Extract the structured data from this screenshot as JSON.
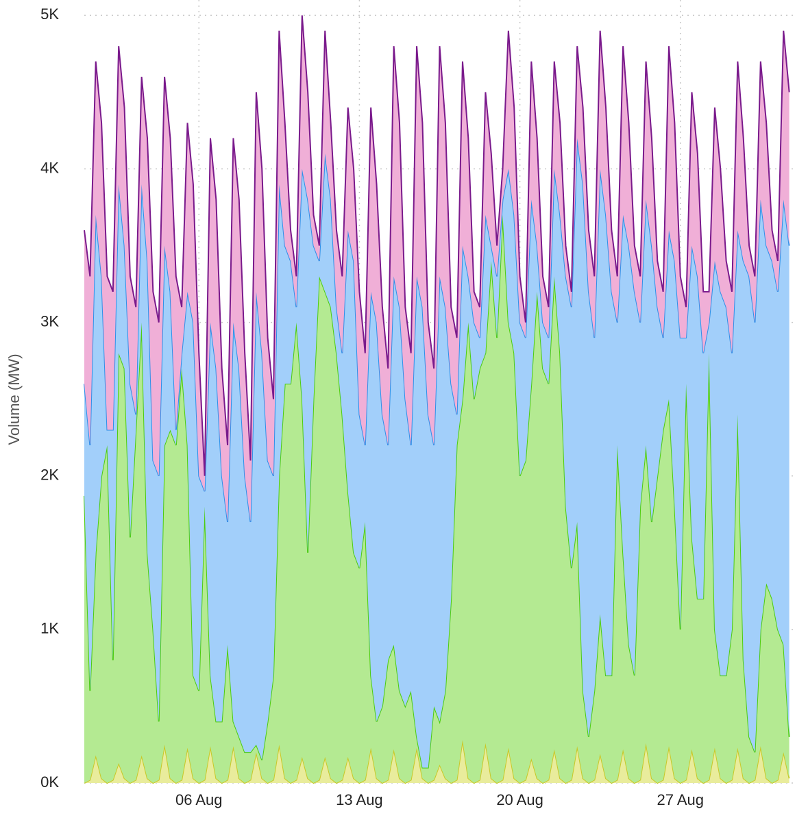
{
  "chart_data": {
    "type": "stacked-area",
    "y_label": "Volume (MW)",
    "xlim": [
      1,
      32
    ],
    "xticks": [
      {
        "value": 6,
        "label": "06 Aug"
      },
      {
        "value": 13,
        "label": "13 Aug"
      },
      {
        "value": 20,
        "label": "20 Aug"
      },
      {
        "value": 27,
        "label": "27 Aug"
      }
    ],
    "ylim": [
      0,
      5100
    ],
    "yticks": [
      {
        "value": 0,
        "label": "0K"
      },
      {
        "value": 1000,
        "label": "1K"
      },
      {
        "value": 2000,
        "label": "2K"
      },
      {
        "value": 3000,
        "label": "3K"
      },
      {
        "value": 4000,
        "label": "4K"
      },
      {
        "value": 5000,
        "label": "5K"
      }
    ],
    "grid": true,
    "x": [
      1,
      1.25,
      1.5,
      1.75,
      2,
      2.25,
      2.5,
      2.75,
      3,
      3.25,
      3.5,
      3.75,
      4,
      4.25,
      4.5,
      4.75,
      5,
      5.25,
      5.5,
      5.75,
      6,
      6.25,
      6.5,
      6.75,
      7,
      7.25,
      7.5,
      7.75,
      8,
      8.25,
      8.5,
      8.75,
      9,
      9.25,
      9.5,
      9.75,
      10,
      10.25,
      10.5,
      10.75,
      11,
      11.25,
      11.5,
      11.75,
      12,
      12.25,
      12.5,
      12.75,
      13,
      13.25,
      13.5,
      13.75,
      14,
      14.25,
      14.5,
      14.75,
      15,
      15.25,
      15.5,
      15.75,
      16,
      16.25,
      16.5,
      16.75,
      17,
      17.25,
      17.5,
      17.75,
      18,
      18.25,
      18.5,
      18.75,
      19,
      19.25,
      19.5,
      19.75,
      20,
      20.25,
      20.5,
      20.75,
      21,
      21.25,
      21.5,
      21.75,
      22,
      22.25,
      22.5,
      22.75,
      23,
      23.25,
      23.5,
      23.75,
      24,
      24.25,
      24.5,
      24.75,
      25,
      25.25,
      25.5,
      25.75,
      26,
      26.25,
      26.5,
      26.75,
      27,
      27.25,
      27.5,
      27.75,
      28,
      28.25,
      28.5,
      28.75,
      29,
      29.25,
      29.5,
      29.75,
      30,
      30.25,
      30.5,
      30.75,
      31,
      31.25,
      31.5,
      31.75
    ],
    "series": [
      {
        "color": "#c8c828",
        "fill": "#e9ec9c",
        "values": [
          0,
          20,
          180,
          30,
          0,
          20,
          130,
          30,
          0,
          20,
          180,
          30,
          0,
          20,
          250,
          30,
          0,
          20,
          230,
          30,
          0,
          20,
          240,
          30,
          0,
          20,
          240,
          30,
          0,
          20,
          200,
          30,
          0,
          20,
          250,
          30,
          0,
          20,
          170,
          30,
          0,
          20,
          170,
          30,
          0,
          20,
          170,
          30,
          0,
          20,
          230,
          30,
          0,
          20,
          220,
          30,
          0,
          20,
          230,
          30,
          0,
          20,
          120,
          30,
          0,
          20,
          280,
          30,
          0,
          20,
          260,
          30,
          0,
          20,
          230,
          30,
          0,
          20,
          160,
          30,
          0,
          20,
          220,
          30,
          0,
          20,
          240,
          30,
          0,
          20,
          190,
          30,
          0,
          20,
          220,
          30,
          0,
          20,
          260,
          30,
          0,
          20,
          240,
          30,
          0,
          20,
          220,
          30,
          0,
          20,
          230,
          30,
          0,
          20,
          230,
          30,
          0,
          20,
          240,
          30,
          0,
          20,
          200,
          30
        ]
      },
      {
        "color": "#4ccc10",
        "fill": "#b4ea92",
        "values": [
          1870,
          580,
          1320,
          1970,
          2200,
          780,
          2670,
          2670,
          1600,
          2280,
          2820,
          1470,
          1000,
          380,
          1950,
          2270,
          2200,
          2680,
          1970,
          670,
          600,
          1780,
          460,
          370,
          400,
          880,
          160,
          270,
          200,
          180,
          50,
          120,
          400,
          680,
          1750,
          2570,
          2600,
          2980,
          2330,
          1470,
          2500,
          3280,
          3030,
          3070,
          2800,
          2380,
          1730,
          1470,
          1400,
          1680,
          470,
          370,
          500,
          780,
          680,
          570,
          500,
          580,
          70,
          70,
          100,
          480,
          280,
          570,
          1200,
          2180,
          2220,
          2970,
          2500,
          2680,
          2540,
          3370,
          2900,
          3680,
          2770,
          2770,
          2000,
          2080,
          2440,
          3170,
          2700,
          2580,
          3080,
          2770,
          1800,
          1380,
          1460,
          570,
          300,
          580,
          910,
          670,
          700,
          2180,
          1280,
          870,
          700,
          1780,
          1940,
          1670,
          2000,
          2280,
          2260,
          1770,
          1000,
          2580,
          1380,
          1170,
          1200,
          2780,
          770,
          670,
          700,
          980,
          2170,
          770,
          300,
          180,
          760,
          1270,
          1200,
          980,
          700,
          270
        ]
      },
      {
        "color": "#2e8fe8",
        "fill": "#a2cffa",
        "values": [
          730,
          1600,
          2200,
          1300,
          100,
          1500,
          1100,
          800,
          1000,
          100,
          900,
          1900,
          1100,
          1600,
          1300,
          900,
          100,
          100,
          1000,
          2300,
          1400,
          100,
          2300,
          2300,
          1600,
          800,
          2600,
          2400,
          1800,
          1500,
          2950,
          2650,
          1700,
          1300,
          1900,
          900,
          800,
          100,
          1500,
          2300,
          1000,
          100,
          900,
          700,
          300,
          400,
          1700,
          1900,
          1000,
          500,
          2500,
          2600,
          1900,
          1400,
          2400,
          2500,
          2000,
          1600,
          3000,
          3000,
          2300,
          1700,
          2900,
          2500,
          1400,
          200,
          1000,
          300,
          500,
          200,
          900,
          100,
          400,
          100,
          1000,
          900,
          1000,
          800,
          1200,
          300,
          300,
          300,
          700,
          900,
          1500,
          1700,
          2500,
          3300,
          2900,
          2300,
          2900,
          3000,
          2500,
          800,
          2200,
          2600,
          2500,
          1200,
          1600,
          1800,
          1100,
          600,
          1100,
          1600,
          1900,
          300,
          1900,
          2100,
          1600,
          200,
          2400,
          2500,
          2400,
          1800,
          1200,
          2600,
          3000,
          2800,
          2800,
          2200,
          2200,
          2200,
          2900,
          3200
        ]
      },
      {
        "color": "#7a1a8c",
        "fill": "#f0afd7",
        "values": [
          1000,
          1100,
          1000,
          1000,
          1000,
          900,
          900,
          900,
          700,
          700,
          700,
          800,
          1100,
          1000,
          1100,
          1000,
          1000,
          300,
          1100,
          900,
          800,
          100,
          1200,
          1100,
          700,
          500,
          1200,
          1100,
          800,
          400,
          1300,
          1200,
          800,
          500,
          1000,
          800,
          200,
          200,
          1000,
          700,
          200,
          100,
          800,
          500,
          500,
          500,
          800,
          600,
          800,
          600,
          1200,
          900,
          700,
          500,
          1500,
          1200,
          600,
          600,
          1500,
          1200,
          600,
          500,
          1500,
          1200,
          500,
          500,
          1200,
          900,
          200,
          200,
          800,
          600,
          200,
          200,
          900,
          700,
          300,
          100,
          900,
          700,
          300,
          200,
          700,
          600,
          200,
          100,
          600,
          500,
          400,
          400,
          900,
          700,
          400,
          300,
          1100,
          800,
          300,
          300,
          900,
          700,
          300,
          300,
          1200,
          900,
          400,
          200,
          1000,
          800,
          400,
          200,
          1000,
          800,
          300,
          400,
          1100,
          800,
          200,
          300,
          900,
          800,
          200,
          200,
          1100,
          1000
        ]
      }
    ]
  }
}
